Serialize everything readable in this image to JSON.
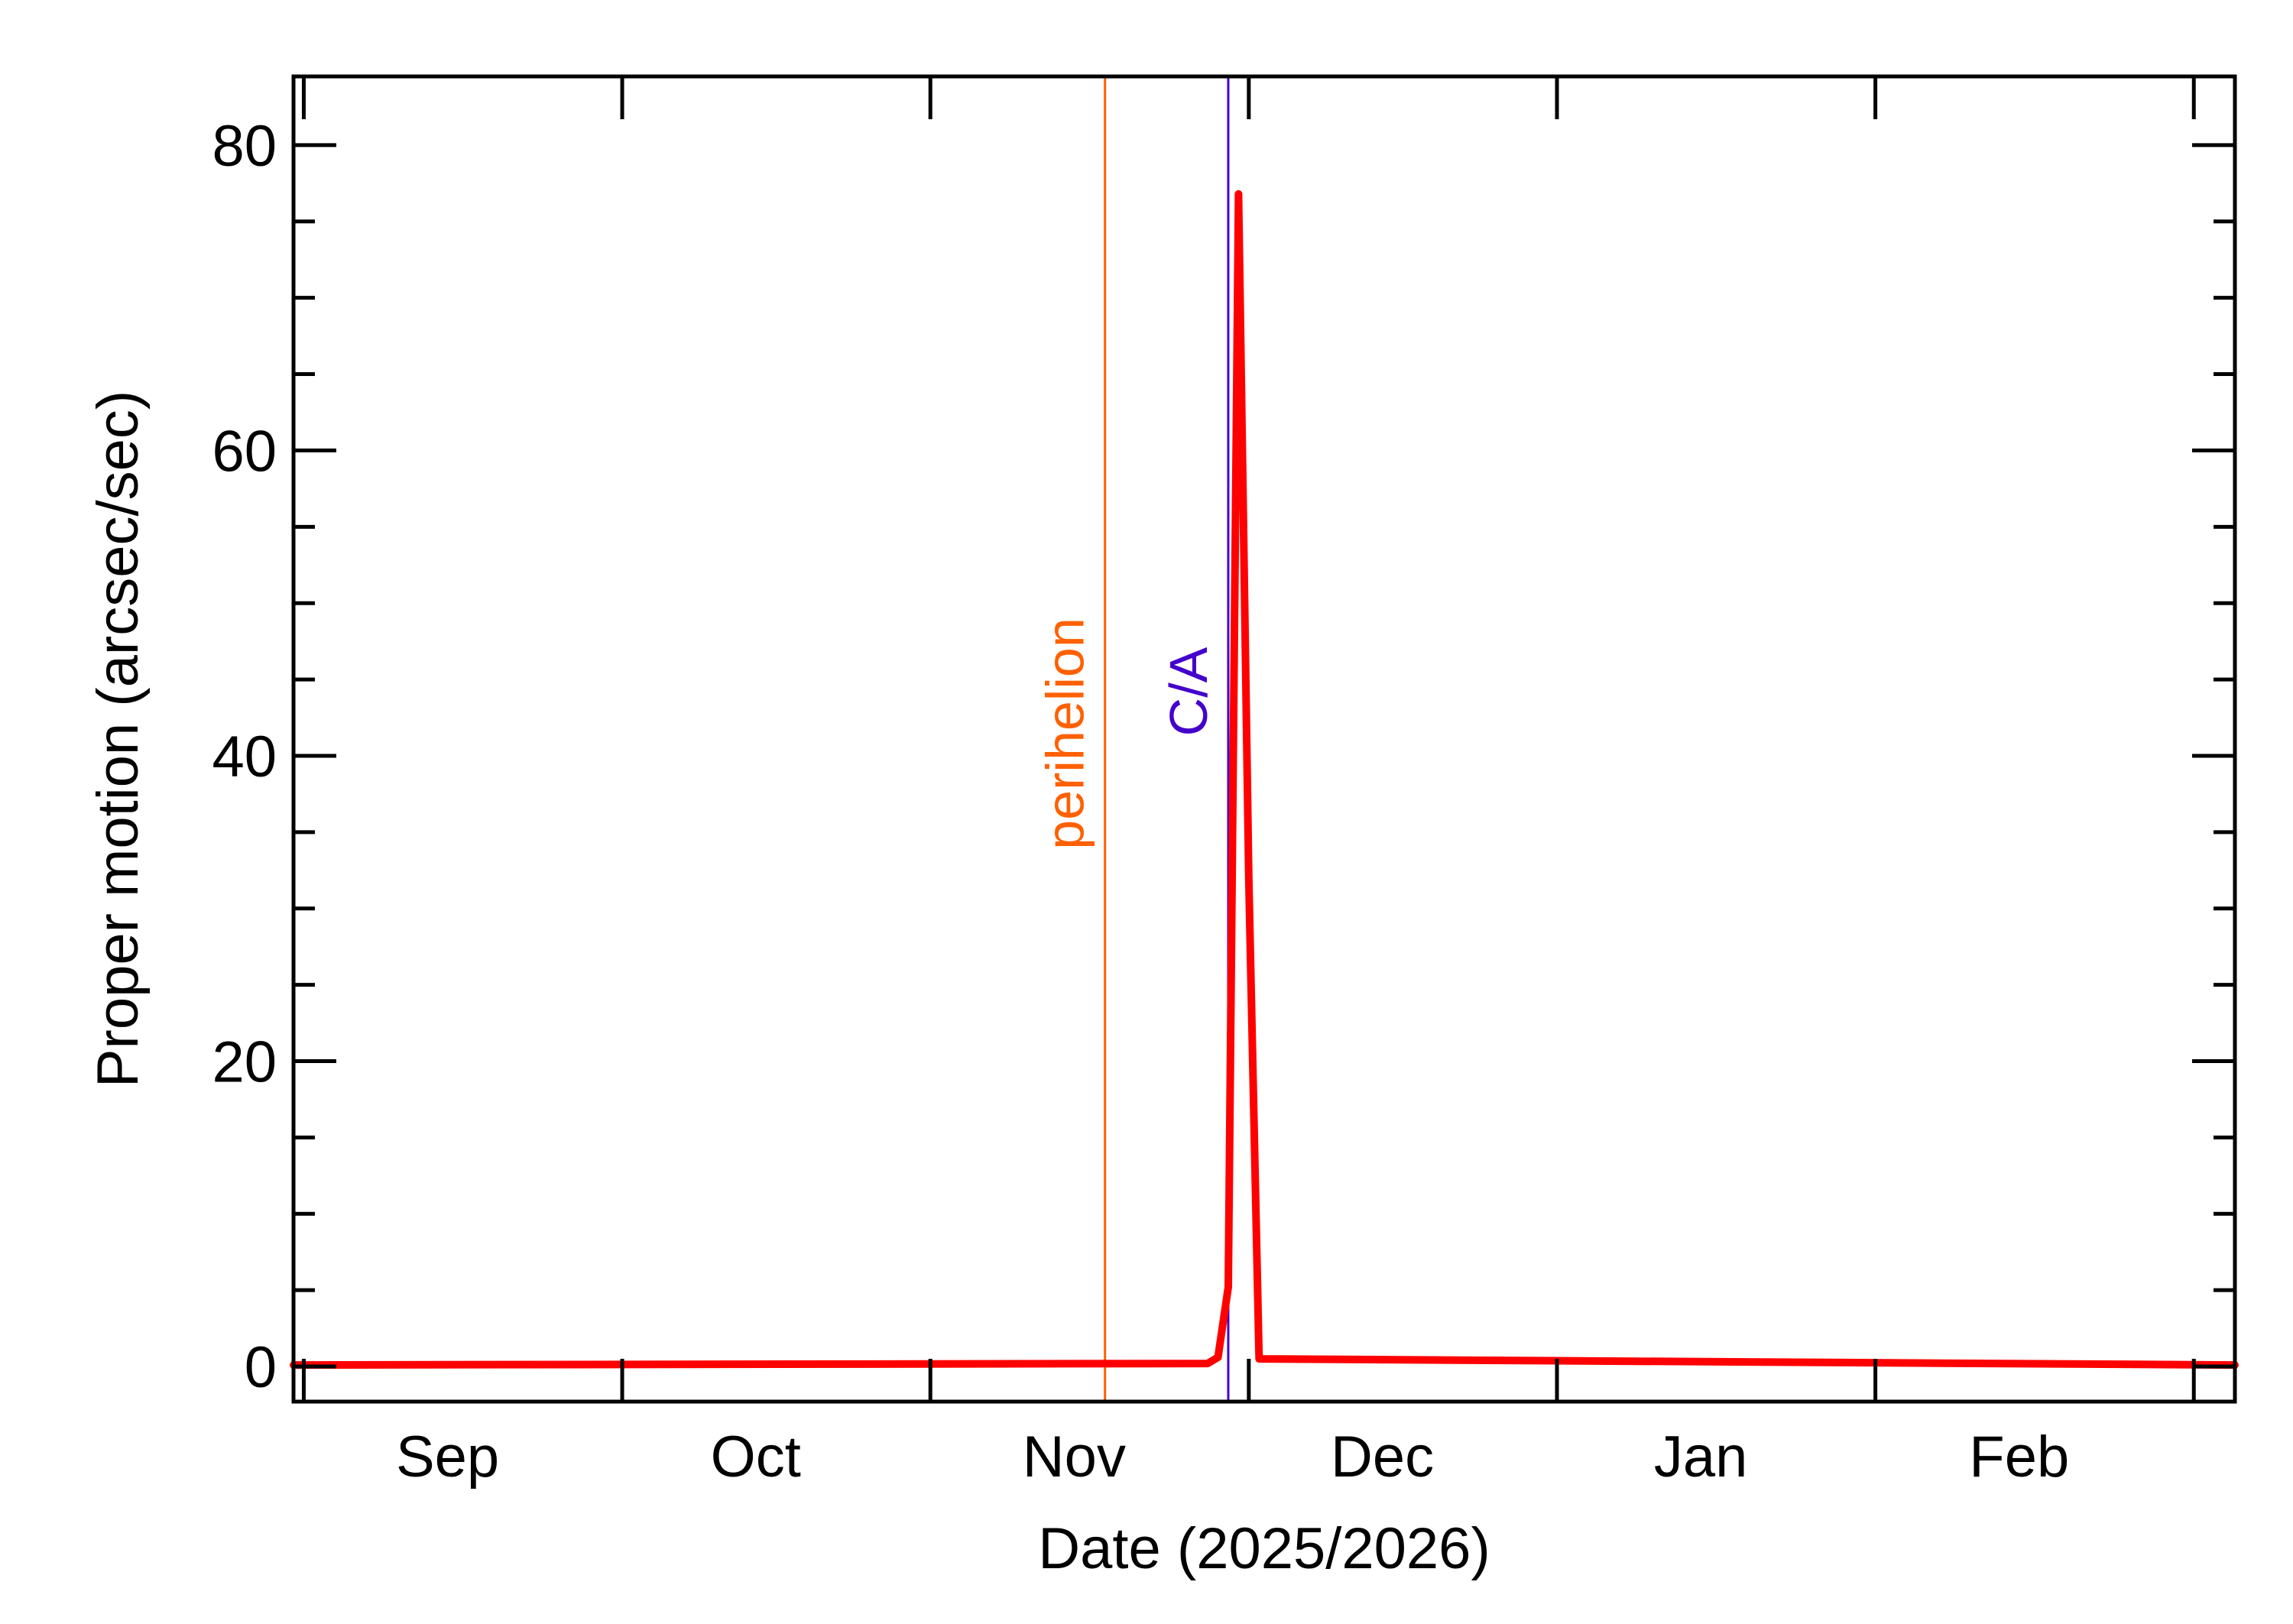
{
  "chart_data": {
    "type": "line",
    "xlabel": "Date (2025/2026)",
    "ylabel": "Proper motion (arcsec/sec)",
    "xlim": [
      "2025-08-17",
      "2026-02-22"
    ],
    "ylim": [
      -2.3,
      84.5
    ],
    "x_tick_marks": [
      "2025-08-18",
      "2025-09-18",
      "2025-10-18",
      "2025-11-18",
      "2025-12-18",
      "2026-01-18",
      "2026-02-18"
    ],
    "x_month_labels": [
      {
        "label": "Sep",
        "date": "2025-09-01"
      },
      {
        "label": "Oct",
        "date": "2025-10-01"
      },
      {
        "label": "Nov",
        "date": "2025-11-01"
      },
      {
        "label": "Dec",
        "date": "2025-12-01"
      },
      {
        "label": "Jan",
        "date": "2026-01-01"
      },
      {
        "label": "Feb",
        "date": "2026-02-01"
      }
    ],
    "y_major_ticks": [
      0,
      20,
      40,
      60,
      80
    ],
    "y_minor_step": 5,
    "grid": false,
    "series": [
      {
        "color": "#ff0000",
        "x": [
          "2025-08-17",
          "2025-11-14",
          "2025-11-15",
          "2025-11-16",
          "2025-11-17",
          "2025-11-18",
          "2025-11-19",
          "2026-02-22"
        ],
        "y": [
          0.1,
          0.2,
          0.6,
          5.2,
          76.8,
          32.0,
          0.5,
          0.1
        ]
      }
    ],
    "annotations": [
      {
        "label": "perihelion",
        "date": "2025-11-04",
        "color": "#ff6000"
      },
      {
        "label": "C/A",
        "date": "2025-11-16",
        "color": "#4400cc"
      }
    ]
  }
}
